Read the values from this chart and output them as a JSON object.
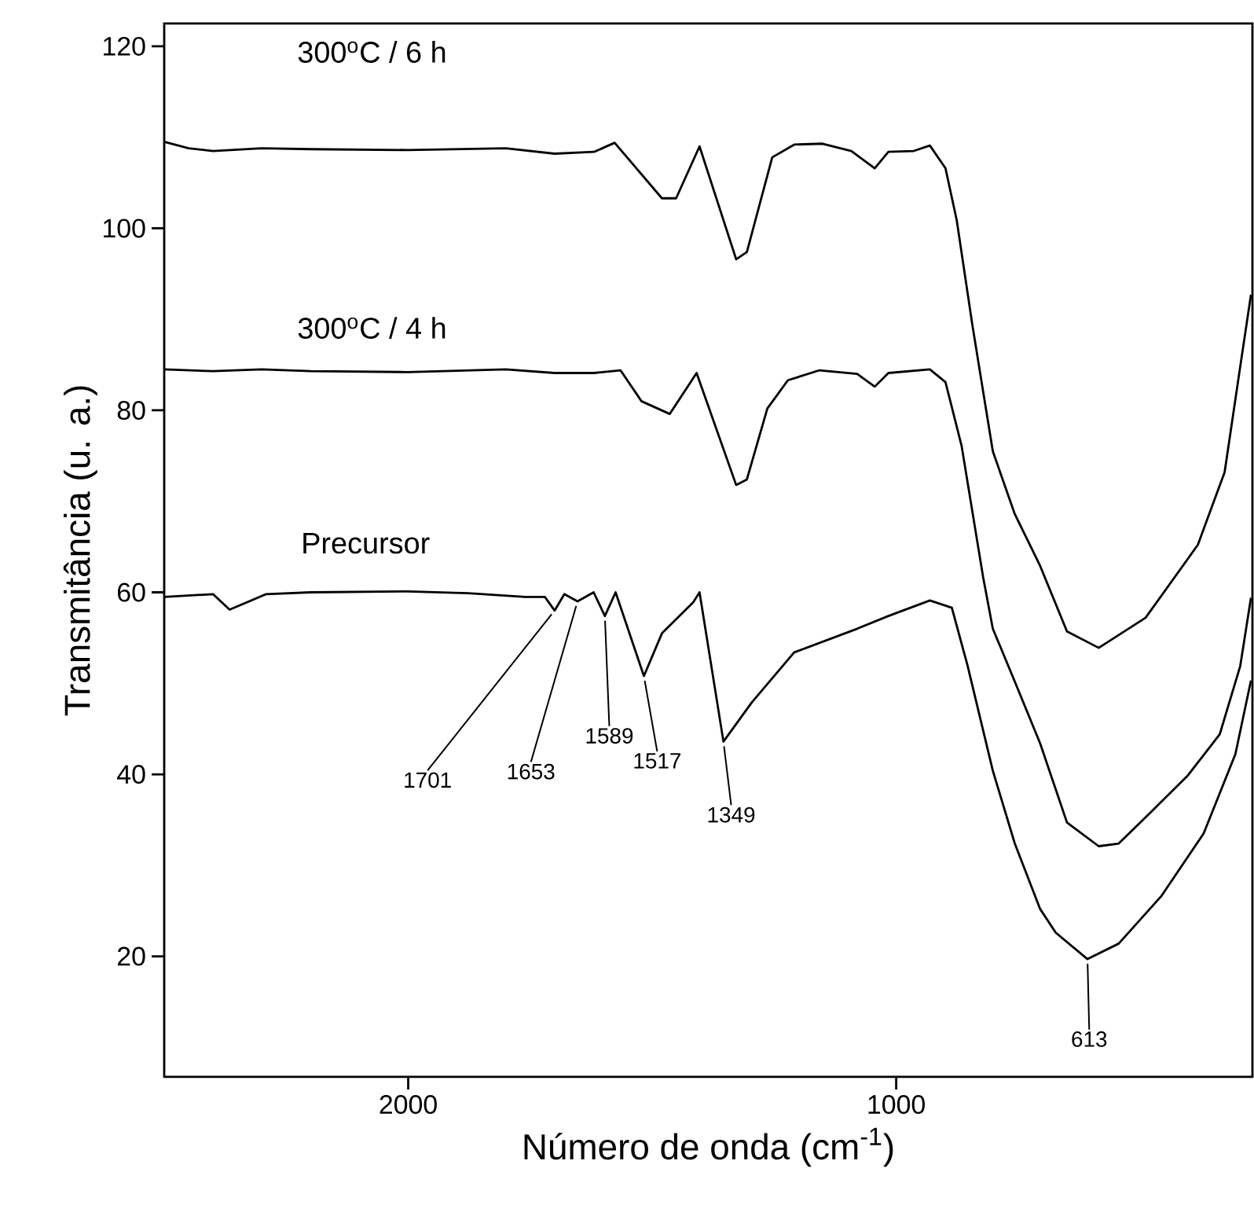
{
  "chart_data": {
    "type": "line",
    "xlabel": "Número de onda (cm$^{-1}$)",
    "ylabel": "Transmitância (u. a.)",
    "xlim": [
      2500,
      270
    ],
    "ylim": [
      6.75,
      122.5
    ],
    "xticks": [
      2000,
      1000
    ],
    "yticks": [
      20,
      40,
      60,
      80,
      100,
      120
    ],
    "series": [
      {
        "name": "300$^{o}$C / 6 h",
        "color": "#000000",
        "x": [
          2500,
          2450,
          2400,
          2300,
          2200,
          2000,
          1800,
          1700,
          1619,
          1577,
          1480,
          1451,
          1403,
          1328,
          1306,
          1254,
          1209,
          1151,
          1092,
          1044,
          1016,
          964,
          931,
          899,
          876,
          844,
          802,
          757,
          705,
          650,
          585,
          489,
          382,
          327,
          295,
          273
        ],
        "values": [
          109.5,
          108.8,
          108.5,
          108.8,
          108.7,
          108.6,
          108.8,
          108.2,
          108.4,
          109.4,
          103.3,
          103.3,
          109,
          96.6,
          97.4,
          107.8,
          109.2,
          109.3,
          108.5,
          106.6,
          108.4,
          108.5,
          109.1,
          106.6,
          100.9,
          89.4,
          75.5,
          68.6,
          62.9,
          55.7,
          53.9,
          57.2,
          65.2,
          73.2,
          84.8,
          92.7
        ]
      },
      {
        "name": "300$^{o}$C / 4 h",
        "color": "#000000",
        "x": [
          2500,
          2400,
          2300,
          2200,
          2000,
          1800,
          1700,
          1619,
          1565,
          1522,
          1464,
          1409,
          1328,
          1306,
          1264,
          1222,
          1157,
          1080,
          1044,
          1016,
          931,
          899,
          866,
          822,
          802,
          757,
          705,
          650,
          585,
          544,
          479,
          402,
          337,
          295,
          273
        ],
        "values": [
          84.5,
          84.3,
          84.5,
          84.3,
          84.2,
          84.5,
          84.1,
          84.1,
          84.4,
          81,
          79.6,
          84.1,
          71.8,
          72.4,
          80.2,
          83.3,
          84.4,
          84,
          82.6,
          84.1,
          84.5,
          83.1,
          76.1,
          61.7,
          56,
          50.2,
          43.4,
          34.7,
          32.1,
          32.4,
          35.8,
          39.9,
          44.4,
          51.9,
          59.4
        ]
      },
      {
        "name": "Precursor",
        "color": "#000000",
        "x": [
          2500,
          2400,
          2366,
          2291,
          2200,
          2000,
          1877,
          1760,
          1720,
          1700,
          1680,
          1653,
          1620,
          1597,
          1575,
          1517,
          1480,
          1416,
          1403,
          1354,
          1296,
          1209,
          1080,
          1016,
          931,
          886,
          854,
          802,
          757,
          705,
          673,
          608,
          544,
          457,
          370,
          305,
          273
        ],
        "values": [
          59.5,
          59.8,
          58.1,
          59.8,
          60,
          60.1,
          59.9,
          59.5,
          59.5,
          58,
          59.8,
          59,
          60,
          57.4,
          60,
          50.8,
          55.5,
          58.9,
          60,
          43.6,
          47.9,
          53.4,
          56,
          57.4,
          59.1,
          58.3,
          52,
          40.4,
          32.4,
          25.2,
          22.6,
          19.7,
          21.4,
          26.6,
          33.5,
          42.2,
          50.3
        ]
      }
    ],
    "annotations": [
      {
        "text": "1701",
        "x": 1700,
        "y": 58
      },
      {
        "text": "1653",
        "x": 1653,
        "y": 59
      },
      {
        "text": "1589",
        "x": 1597,
        "y": 57.4
      },
      {
        "text": "1517",
        "x": 1517,
        "y": 50.8
      },
      {
        "text": "1349",
        "x": 1354,
        "y": 43.6
      },
      {
        "text": "613",
        "x": 608,
        "y": 19.7
      }
    ]
  }
}
